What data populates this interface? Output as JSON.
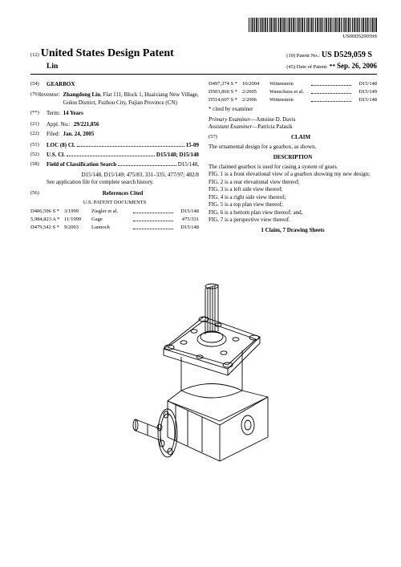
{
  "barcode_number": "US00D529059S",
  "header": {
    "doc_type_label": "(12)",
    "doc_type": "United States Design Patent",
    "inventor_surname": "Lin",
    "patent_no_label": "(10) Patent No.:",
    "patent_no": "US D529,059 S",
    "date_label": "(45) Date of Patent:",
    "date_marker": "**",
    "date": "Sep. 26, 2006"
  },
  "fields": {
    "title_num": "(54)",
    "title": "GEARBOX",
    "inventor_num": "(76)",
    "inventor_label": "Inventor:",
    "inventor_name": "Zhangdong Lin",
    "inventor_addr": ", Flat 111, Block 1, Huaixiang New Village, Gulou District, Fuzhou City, Fujian Province (CN)",
    "term_num": "(**)",
    "term_label": "Term:",
    "term": "14 Years",
    "appl_num": "(21)",
    "appl_label": "Appl. No.:",
    "appl": "29/221,856",
    "filed_num": "(22)",
    "filed_label": "Filed:",
    "filed": "Jan. 24, 2005",
    "loc_num": "(51)",
    "loc_label": "LOC (8) Cl.",
    "loc": "15-09",
    "uscl_num": "(52)",
    "uscl_label": "U.S. Cl.",
    "uscl": "D15/148; D15/148",
    "search_num": "(58)",
    "search_label": "Field of Classification Search",
    "search": "D15/148, D15/149; 475/83, 331–335; 477/97; 482/8",
    "search_note": "See application file for complete search history.",
    "refs_num": "(56)",
    "refs_label": "References Cited",
    "us_docs_label": "U.S. PATENT DOCUMENTS"
  },
  "us_refs": [
    {
      "num": "D406,596 S",
      "mark": "*",
      "date": "3/1999",
      "name": "Ziegler et al.",
      "cls": "D15/148"
    },
    {
      "num": "5,984,823 A",
      "mark": "*",
      "date": "11/1999",
      "name": "Gage",
      "cls": "475/331"
    },
    {
      "num": "D479,542 S",
      "mark": "*",
      "date": "9/2003",
      "name": "Lannoch",
      "cls": "D15/148"
    }
  ],
  "us_refs2": [
    {
      "num": "D497,374 S",
      "mark": "*",
      "date": "10/2004",
      "name": "Wittenstein",
      "cls": "D15/148"
    },
    {
      "num": "D503,860 S",
      "mark": "*",
      "date": "2/2005",
      "name": "Wanschura et al.",
      "cls": "D15/149"
    },
    {
      "num": "D514,607 S",
      "mark": "*",
      "date": "2/2006",
      "name": "Wittenstein",
      "cls": "D15/148"
    }
  ],
  "right_col": {
    "cited_note": "* cited by examiner",
    "primary_label": "Primary Examiner",
    "primary": "—Antoine D. Davis",
    "assistant_label": "Assistant Examiner",
    "assistant": "—Patricia Palasik",
    "claim_num": "(57)",
    "claim_label": "CLAIM",
    "claim_text": "The ornamental design for a gearbox, as shown.",
    "desc_label": "DESCRIPTION",
    "desc_intro": "The claimed gearbox is used for casing a system of gears.",
    "figs": [
      "FIG. 1 is a front elevational view of a gearbox showing my new design;",
      "FIG. 2 is a rear elevational view thereof;",
      "FIG. 3 is a left side view thereof;",
      "FIG. 4 is a right side view thereof;",
      "FIG. 5 is a top plan view thereof;",
      "FIG. 6 is a bottom plan view thereof; and,",
      "FIG. 7 is a perspective view thereof."
    ],
    "claim_count": "1 Claim, 7 Drawing Sheets"
  },
  "figure": {
    "stroke": "#000000",
    "fill": "#ffffff",
    "stroke_width": 0.9
  }
}
